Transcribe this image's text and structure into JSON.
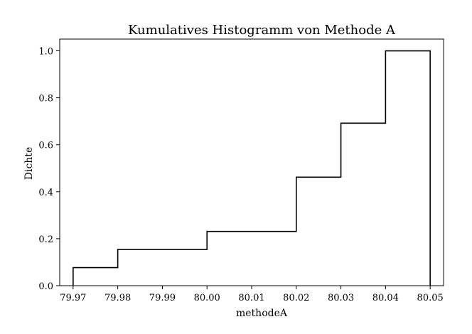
{
  "chart_data": {
    "type": "histogram-step-cumulative",
    "title": "Kumulatives Histogramm von Methode A",
    "xlabel": "methodeA",
    "ylabel": "Dichte",
    "xlim": [
      79.967,
      80.053
    ],
    "ylim": [
      0.0,
      1.05
    ],
    "x_ticks": [
      79.97,
      79.98,
      79.99,
      80.0,
      80.01,
      80.02,
      80.03,
      80.04,
      80.05
    ],
    "x_tick_labels": [
      "79.97",
      "79.98",
      "79.99",
      "80.00",
      "80.01",
      "80.02",
      "80.03",
      "80.04",
      "80.05"
    ],
    "y_ticks": [
      0.0,
      0.2,
      0.4,
      0.6,
      0.8,
      1.0
    ],
    "y_tick_labels": [
      "0.0",
      "0.2",
      "0.4",
      "0.6",
      "0.8",
      "1.0"
    ],
    "bin_edges": [
      79.97,
      79.98,
      80.0,
      80.02,
      80.03,
      80.04,
      80.05
    ],
    "cumulative_values": [
      0.077,
      0.154,
      0.231,
      0.462,
      0.692,
      1.0
    ],
    "grid": false,
    "line_color": "#000000"
  }
}
